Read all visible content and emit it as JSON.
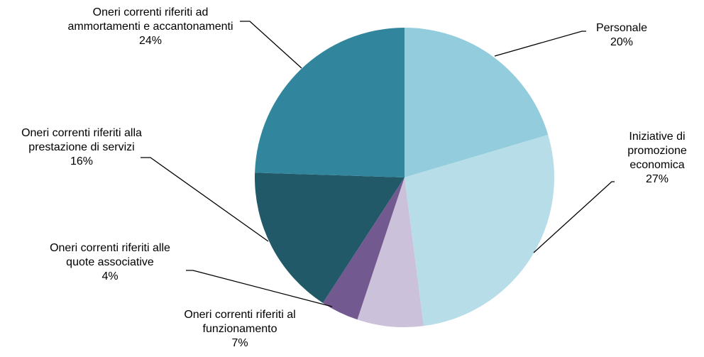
{
  "chart_data": {
    "type": "pie",
    "categories": [
      "Personale",
      "Iniziative di promozione economica",
      "Oneri correnti riferiti al funzionamento",
      "Oneri correnti riferiti alle quote associative",
      "Oneri correnti riferiti alla prestazione di servizi",
      "Oneri correnti riferiti ad ammortamenti e accantonamenti"
    ],
    "values": [
      20,
      27,
      7,
      4,
      16,
      24
    ],
    "value_labels": [
      "20%",
      "27%",
      "7%",
      "4%",
      "16%",
      "24%"
    ],
    "colors": [
      "#93cddd",
      "#b7dee8",
      "#ccc1da",
      "#725990",
      "#215968",
      "#31859c"
    ]
  }
}
